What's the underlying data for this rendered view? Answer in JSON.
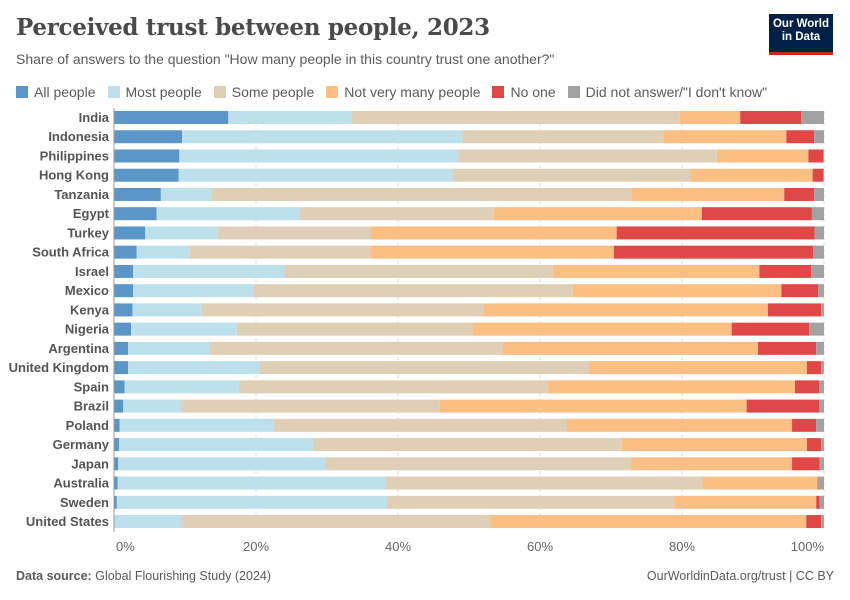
{
  "title": "Perceived trust between people, 2023",
  "subtitle": "Share of answers to the question \"How many people in this country trust one another?\"",
  "logo": "Our World in Data",
  "footer": {
    "source_label": "Data source:",
    "source": "Global Flourishing Study (2024)",
    "link": "OurWorldinData.org/trust | CC BY"
  },
  "chart_data": {
    "type": "bar",
    "orientation": "horizontal",
    "stacked": true,
    "title": "Perceived trust between people, 2023",
    "xlim": [
      0,
      100
    ],
    "x_ticks": [
      "0%",
      "20%",
      "40%",
      "60%",
      "80%",
      "100%"
    ],
    "grid": true,
    "legend_position": "top",
    "categories": [
      "India",
      "Indonesia",
      "Philippines",
      "Hong Kong",
      "Tanzania",
      "Egypt",
      "Turkey",
      "South Africa",
      "Israel",
      "Mexico",
      "Kenya",
      "Nigeria",
      "Argentina",
      "United Kingdom",
      "Spain",
      "Brazil",
      "Poland",
      "Germany",
      "Japan",
      "Australia",
      "Sweden",
      "United States"
    ],
    "series": [
      {
        "name": "All people",
        "color": "#5a96c8",
        "values": [
          16.1,
          9.6,
          9.2,
          9.1,
          6.6,
          6.0,
          4.4,
          3.2,
          2.7,
          2.7,
          2.6,
          2.4,
          2.0,
          2.0,
          1.5,
          1.3,
          0.8,
          0.7,
          0.6,
          0.5,
          0.4,
          0.1
        ]
      },
      {
        "name": "Most people",
        "color": "#bce0ec",
        "values": [
          17.3,
          39.5,
          39.3,
          38.6,
          7.1,
          20.1,
          10.2,
          7.5,
          21.3,
          16.9,
          9.7,
          14.9,
          11.4,
          18.5,
          16.1,
          8.2,
          21.7,
          27.4,
          29.2,
          37.8,
          38.0,
          9.4
        ]
      },
      {
        "name": "Some people",
        "color": "#decfb6",
        "values": [
          46.3,
          28.3,
          36.4,
          33.5,
          59.2,
          27.4,
          21.6,
          25.4,
          37.8,
          45.0,
          39.7,
          33.2,
          41.3,
          46.4,
          43.5,
          36.4,
          41.3,
          43.4,
          43.0,
          44.6,
          40.5,
          43.5
        ]
      },
      {
        "name": "Not very many people",
        "color": "#fbbe83",
        "values": [
          8.5,
          17.3,
          12.9,
          17.2,
          21.5,
          29.3,
          34.6,
          34.3,
          29.1,
          29.4,
          40.1,
          36.5,
          36.0,
          30.7,
          34.8,
          43.2,
          31.7,
          26.1,
          22.7,
          16.2,
          20.0,
          44.5
        ]
      },
      {
        "name": "No one",
        "color": "#e04848",
        "values": [
          8.6,
          3.9,
          2.1,
          1.5,
          4.2,
          15.5,
          27.9,
          28.1,
          7.3,
          5.2,
          7.5,
          10.9,
          8.2,
          2.0,
          3.4,
          10.2,
          3.4,
          2.0,
          3.9,
          0.1,
          0.5,
          2.1
        ]
      },
      {
        "name": "Did not answer/\"I don't know\"",
        "color": "#a2a2a2",
        "values": [
          3.2,
          1.4,
          0.1,
          0.1,
          1.4,
          1.7,
          1.3,
          1.5,
          1.8,
          0.8,
          0.4,
          2.1,
          1.1,
          0.4,
          0.7,
          0.7,
          1.1,
          0.4,
          0.6,
          0.8,
          0.6,
          0.4
        ]
      }
    ]
  }
}
